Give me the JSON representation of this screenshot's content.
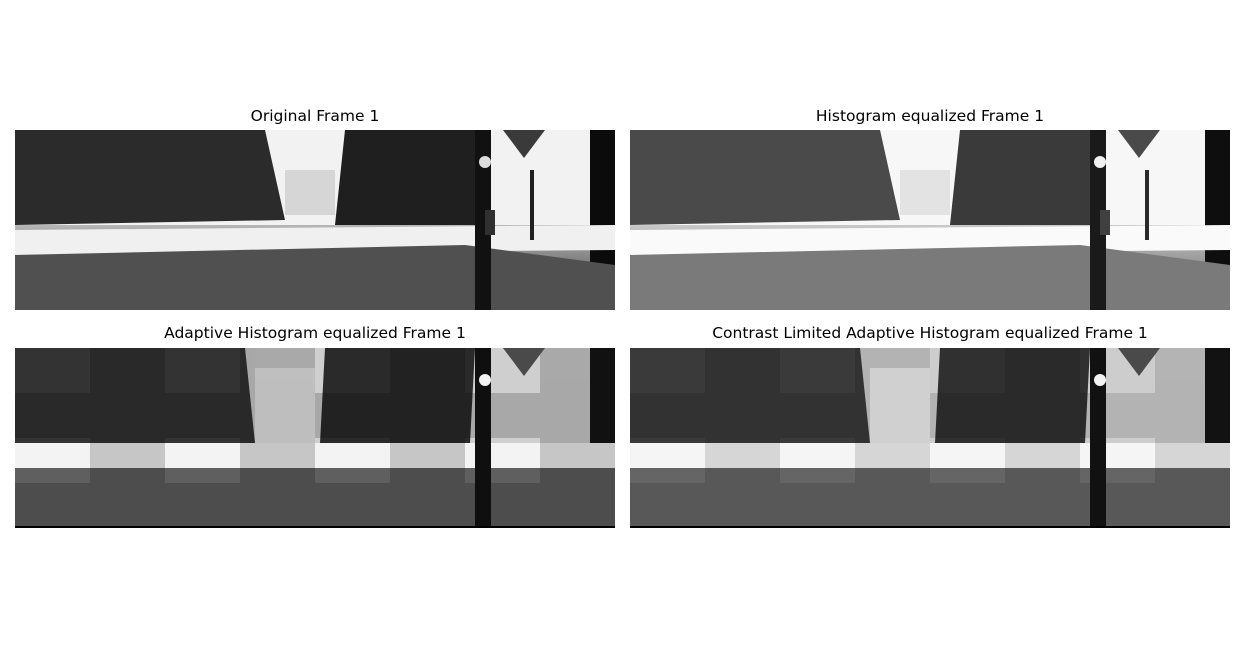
{
  "figure": {
    "panels": [
      {
        "title": "Original Frame 1",
        "variant": "original"
      },
      {
        "title": "Histogram equalized Frame 1",
        "variant": "histogram-equalized"
      },
      {
        "title": "Adaptive Histogram equalized Frame 1",
        "variant": "adaptive-histogram-equalized"
      },
      {
        "title": "Contrast Limited Adaptive Histogram equalized Frame 1",
        "variant": "clahe"
      }
    ],
    "colors": {
      "background": "#ffffff",
      "title_text": "#000000"
    }
  }
}
